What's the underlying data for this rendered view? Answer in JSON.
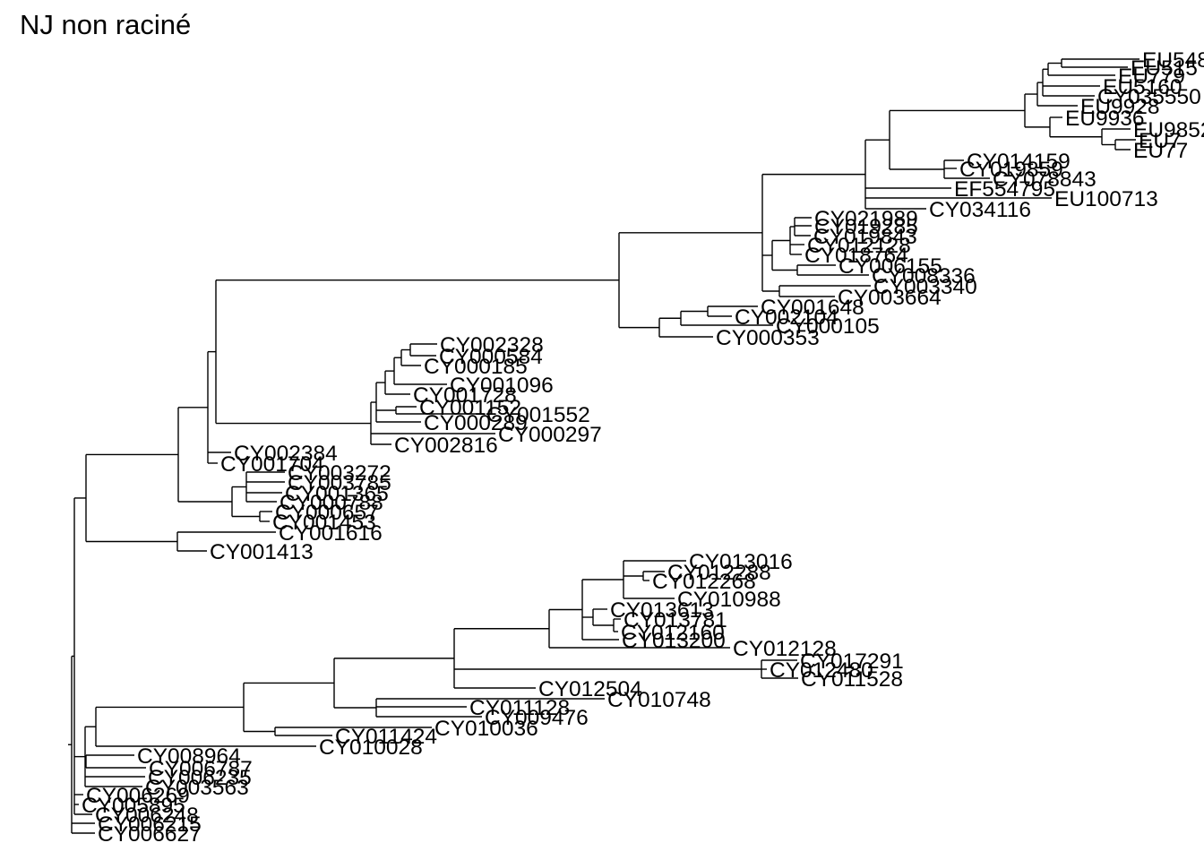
{
  "title": "NJ non raciné",
  "tips": [
    "EU548",
    "EU515",
    "EU779",
    "EU5160",
    "CY035550",
    "EU9928",
    "EU9936",
    "EU9852",
    "EU7",
    "EU77",
    "CY014159",
    "CY019859",
    "CY078843",
    "EF554795",
    "EU100713",
    "CY034116",
    "CY021989",
    "CY019285",
    "CY019843",
    "CY012128",
    "CY018764",
    "CY006155",
    "CY008336",
    "CY003340",
    "CY003664",
    "CY001648",
    "CY002104",
    "CY000105",
    "CY000353",
    "CY002328",
    "CY000584",
    "CY000185",
    "CY001096",
    "CY001728",
    "CY001152",
    "CY001552",
    "CY000289",
    "CY000297",
    "CY002816",
    "CY002384",
    "CY001704",
    "CY003272",
    "CY003785",
    "CY001365",
    "CY000788",
    "CY000657",
    "CY001453",
    "CY001616",
    "CY001413",
    "CY013016",
    "CY012288",
    "CY012268",
    "CY010988",
    "CY013613",
    "CY013781",
    "CY012160",
    "CY013200",
    "CY012128",
    "CY017291",
    "CY012480",
    "CY011528",
    "CY012504",
    "CY010748",
    "CY011128",
    "CY009476",
    "CY010036",
    "CY011424",
    "CY010028",
    "CY008964",
    "CY006787",
    "CY006235",
    "CY003563",
    "CY006269",
    "CY005895",
    "CY006248",
    "CY006215",
    "CY006627"
  ]
}
